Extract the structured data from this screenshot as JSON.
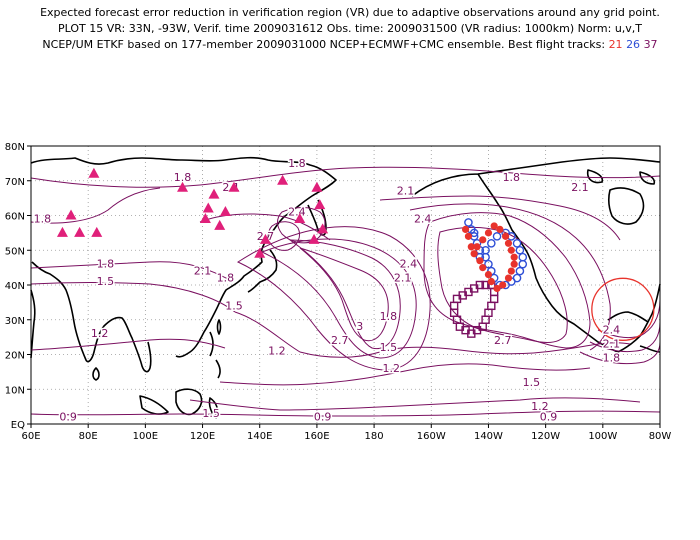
{
  "header": {
    "line1": "Expected forecast error reduction in verification region (VR) due to adaptive observations around any grid point.",
    "line2": "PLOT 15 VR: 33N, -93W, Verif. time 2009031612 Obs. time: 2009031500 (VR radius: 1000km) Norm: u,v,T",
    "line3_prefix": "NCEP/UM ETKF based on 177-member 2009031000 NCEP+ECMWF+CMC ensemble. Best flight tracks: ",
    "track_a": "21",
    "track_b": "26",
    "track_c": "37"
  },
  "map": {
    "lat_ticks": [
      "80N",
      "70N",
      "60N",
      "50N",
      "40N",
      "30N",
      "20N",
      "10N",
      "EQ"
    ],
    "lon_ticks": [
      "60E",
      "80E",
      "100E",
      "120E",
      "140E",
      "160E",
      "180",
      "160W",
      "140W",
      "120W",
      "100W",
      "80W"
    ],
    "colors": {
      "contour": "#7a1060",
      "track21": "#e8332c",
      "track26": "#2f4fd6",
      "track37": "#7a1060",
      "vr_circle": "#e8332c",
      "obs_marker": "#e0207a"
    },
    "contour_labels": [
      {
        "text": "1.8",
        "lon": 113,
        "lat": 70
      },
      {
        "text": "1.8",
        "lon": 153,
        "lat": 74
      },
      {
        "text": "1.8",
        "lon": 64,
        "lat": 58
      },
      {
        "text": "1.8",
        "lon": 86,
        "lat": 45
      },
      {
        "text": "1.5",
        "lon": 86,
        "lat": 40
      },
      {
        "text": "2.1",
        "lon": 130,
        "lat": 67
      },
      {
        "text": "2.1",
        "lon": 191,
        "lat": 66
      },
      {
        "text": "1.8",
        "lon": 228,
        "lat": 70
      },
      {
        "text": "2.1",
        "lon": 252,
        "lat": 67
      },
      {
        "text": "2.4",
        "lon": 153,
        "lat": 60
      },
      {
        "text": "2.7",
        "lon": 142,
        "lat": 53
      },
      {
        "text": "2.1",
        "lon": 120,
        "lat": 43
      },
      {
        "text": "1.8",
        "lon": 128,
        "lat": 41
      },
      {
        "text": "2.4",
        "lon": 197,
        "lat": 58
      },
      {
        "text": "2.4",
        "lon": 192,
        "lat": 45
      },
      {
        "text": "2.1",
        "lon": 190,
        "lat": 41
      },
      {
        "text": "1.5",
        "lon": 131,
        "lat": 33
      },
      {
        "text": "1.2",
        "lon": 84,
        "lat": 25
      },
      {
        "text": "3",
        "lon": 175,
        "lat": 27
      },
      {
        "text": "2.7",
        "lon": 168,
        "lat": 23
      },
      {
        "text": "1.8",
        "lon": 185,
        "lat": 30
      },
      {
        "text": "1.5",
        "lon": 185,
        "lat": 21
      },
      {
        "text": "1.2",
        "lon": 186,
        "lat": 15
      },
      {
        "text": "1.2",
        "lon": 146,
        "lat": 20
      },
      {
        "text": "2.7",
        "lon": 225,
        "lat": 23
      },
      {
        "text": "2.4",
        "lon": 263,
        "lat": 26
      },
      {
        "text": "2.1",
        "lon": 263,
        "lat": 22
      },
      {
        "text": "1.8",
        "lon": 263,
        "lat": 18
      },
      {
        "text": "1.5",
        "lon": 235,
        "lat": 11
      },
      {
        "text": "1.2",
        "lon": 238,
        "lat": 4
      },
      {
        "text": "0.9",
        "lon": 241,
        "lat": 1
      },
      {
        "text": "0.9",
        "lon": 73,
        "lat": 1
      },
      {
        "text": "1.5",
        "lon": 123,
        "lat": 2
      },
      {
        "text": "0.9",
        "lon": 162,
        "lat": 1
      }
    ],
    "obs_sites": [
      {
        "lon": 82,
        "lat": 72
      },
      {
        "lon": 74,
        "lat": 60
      },
      {
        "lon": 71,
        "lat": 55
      },
      {
        "lon": 77,
        "lat": 55
      },
      {
        "lon": 83,
        "lat": 55
      },
      {
        "lon": 113,
        "lat": 68
      },
      {
        "lon": 124,
        "lat": 66
      },
      {
        "lon": 131,
        "lat": 68
      },
      {
        "lon": 122,
        "lat": 62
      },
      {
        "lon": 128,
        "lat": 61
      },
      {
        "lon": 121,
        "lat": 59
      },
      {
        "lon": 126,
        "lat": 57
      },
      {
        "lon": 148,
        "lat": 70
      },
      {
        "lon": 160,
        "lat": 68
      },
      {
        "lon": 161,
        "lat": 63
      },
      {
        "lon": 154,
        "lat": 59
      },
      {
        "lon": 162,
        "lat": 56
      },
      {
        "lon": 159,
        "lat": 53
      },
      {
        "lon": 142,
        "lat": 53
      },
      {
        "lon": 140,
        "lat": 49
      }
    ],
    "track21": [
      {
        "lon": -148,
        "lat": 56
      },
      {
        "lon": -147,
        "lat": 54
      },
      {
        "lon": -146,
        "lat": 51
      },
      {
        "lon": -145,
        "lat": 49
      },
      {
        "lon": -143,
        "lat": 47
      },
      {
        "lon": -142,
        "lat": 45
      },
      {
        "lon": -140,
        "lat": 43
      },
      {
        "lon": -139,
        "lat": 41
      },
      {
        "lon": -137,
        "lat": 39
      },
      {
        "lon": -135,
        "lat": 40
      },
      {
        "lon": -133,
        "lat": 42
      },
      {
        "lon": -132,
        "lat": 44
      },
      {
        "lon": -131,
        "lat": 46
      },
      {
        "lon": -131,
        "lat": 48
      },
      {
        "lon": -132,
        "lat": 50
      },
      {
        "lon": -133,
        "lat": 52
      },
      {
        "lon": -134,
        "lat": 54
      },
      {
        "lon": -136,
        "lat": 56
      },
      {
        "lon": -138,
        "lat": 57
      },
      {
        "lon": -140,
        "lat": 55
      },
      {
        "lon": -142,
        "lat": 53
      },
      {
        "lon": -144,
        "lat": 51
      }
    ],
    "track26": [
      {
        "lon": -147,
        "lat": 58
      },
      {
        "lon": -146,
        "lat": 56
      },
      {
        "lon": -145,
        "lat": 54
      },
      {
        "lon": -144,
        "lat": 52
      },
      {
        "lon": -143,
        "lat": 50
      },
      {
        "lon": -141,
        "lat": 48
      },
      {
        "lon": -140,
        "lat": 46
      },
      {
        "lon": -139,
        "lat": 44
      },
      {
        "lon": -138,
        "lat": 42
      },
      {
        "lon": -136,
        "lat": 40
      },
      {
        "lon": -134,
        "lat": 40
      },
      {
        "lon": -132,
        "lat": 41
      },
      {
        "lon": -130,
        "lat": 42
      },
      {
        "lon": -129,
        "lat": 44
      },
      {
        "lon": -128,
        "lat": 46
      },
      {
        "lon": -128,
        "lat": 48
      },
      {
        "lon": -129,
        "lat": 50
      },
      {
        "lon": -130,
        "lat": 52
      },
      {
        "lon": -132,
        "lat": 54
      },
      {
        "lon": -134,
        "lat": 55
      },
      {
        "lon": -137,
        "lat": 54
      },
      {
        "lon": -139,
        "lat": 52
      },
      {
        "lon": -141,
        "lat": 50
      },
      {
        "lon": -143,
        "lat": 48
      },
      {
        "lon": -145,
        "lat": 55
      }
    ],
    "track37": [
      {
        "lon": -152,
        "lat": 34
      },
      {
        "lon": -152,
        "lat": 32
      },
      {
        "lon": -151,
        "lat": 30
      },
      {
        "lon": -150,
        "lat": 28
      },
      {
        "lon": -148,
        "lat": 27
      },
      {
        "lon": -146,
        "lat": 26
      },
      {
        "lon": -144,
        "lat": 27
      },
      {
        "lon": -142,
        "lat": 28
      },
      {
        "lon": -141,
        "lat": 30
      },
      {
        "lon": -140,
        "lat": 32
      },
      {
        "lon": -139,
        "lat": 34
      },
      {
        "lon": -138,
        "lat": 36
      },
      {
        "lon": -138,
        "lat": 38
      },
      {
        "lon": -139,
        "lat": 40
      },
      {
        "lon": -141,
        "lat": 40
      },
      {
        "lon": -143,
        "lat": 40
      },
      {
        "lon": -145,
        "lat": 39
      },
      {
        "lon": -147,
        "lat": 38
      },
      {
        "lon": -149,
        "lat": 37
      },
      {
        "lon": -151,
        "lat": 36
      }
    ],
    "vr": {
      "lon": -93,
      "lat": 33
    }
  }
}
